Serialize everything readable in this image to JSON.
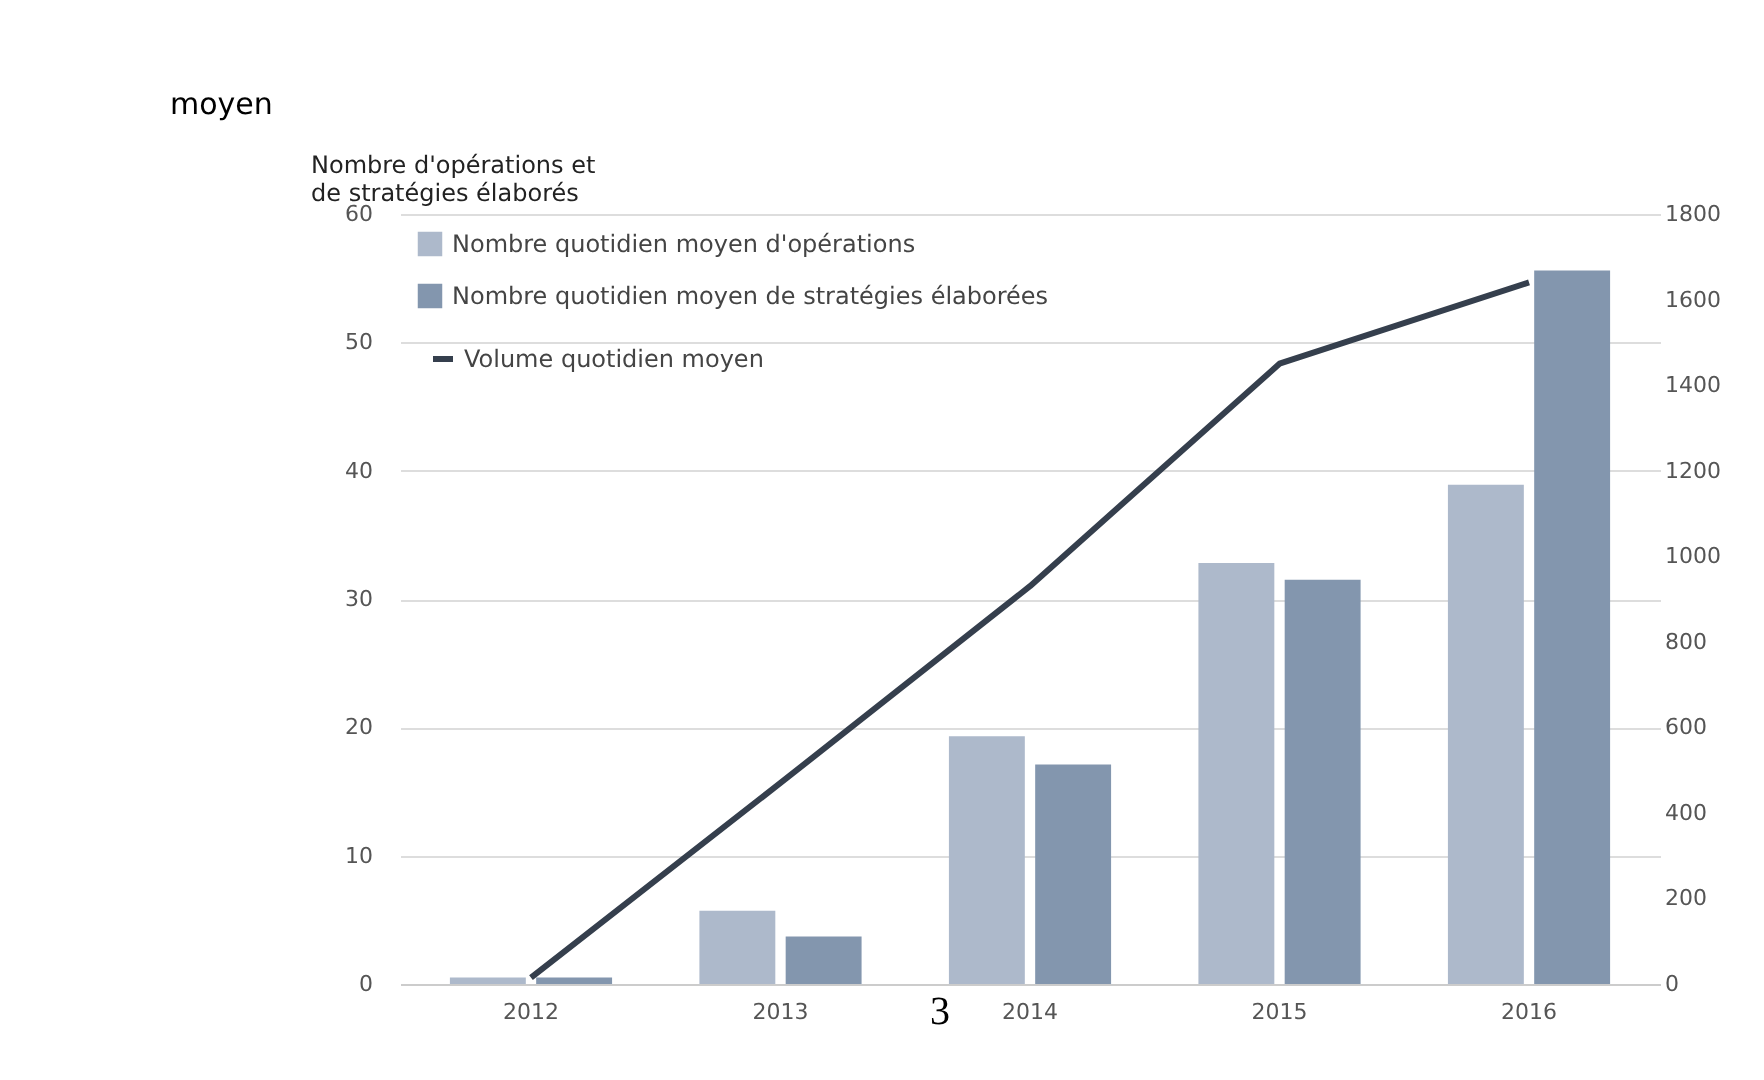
{
  "chart_data": {
    "type": "bar",
    "ylabel": "Nombre d'opérations et de stratégies élaborés",
    "categories": [
      "2012",
      "2013",
      "2014",
      "2015",
      "2016"
    ],
    "series": [
      {
        "name": "Nombre quotidien moyen d'opérations",
        "color": "#adb9cb",
        "values": [
          0.5,
          5.7,
          19.3,
          32.8,
          38.9
        ]
      },
      {
        "name": "Nombre quotidien moyen de stratégies élaborées",
        "color": "#8396ae",
        "values": [
          0.5,
          3.7,
          17.1,
          31.5,
          55.6
        ]
      },
      {
        "name": "Volume quotidien moyen",
        "type": "line",
        "axis": "y2",
        "color": "#353f4d",
        "values": [
          15,
          470,
          930,
          1450,
          1640
        ]
      }
    ],
    "ylim": [
      0,
      60
    ],
    "yticks": [
      0,
      10,
      20,
      30,
      40,
      50,
      60
    ],
    "y2lim": [
      0,
      1800
    ],
    "y2ticks": [
      0,
      200,
      400,
      600,
      800,
      1000,
      1200,
      1400,
      1600,
      1800
    ],
    "grid": "y",
    "legend": "top left",
    "annotations": [
      "moyen",
      "3"
    ]
  }
}
